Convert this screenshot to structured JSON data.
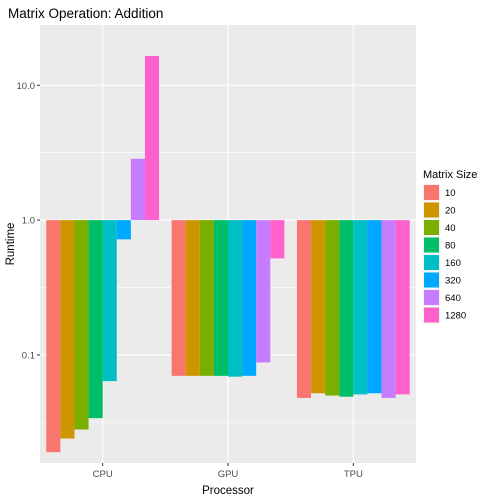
{
  "chart_data": {
    "type": "bar",
    "title": "Matrix Operation: Addition",
    "xlabel": "Processor",
    "ylabel": "Runtime",
    "y_scale": "log10",
    "ylim": [
      0.0158,
      28.0
    ],
    "y_ticks": [
      {
        "value": 0.1,
        "label": "0.1"
      },
      {
        "value": 1.0,
        "label": "1.0"
      },
      {
        "value": 10.0,
        "label": "10.0"
      }
    ],
    "bar_baseline": 1.0,
    "categories": [
      "CPU",
      "GPU",
      "TPU"
    ],
    "grid": true,
    "legend": {
      "title": "Matrix Size",
      "position": "right"
    },
    "series": [
      {
        "name": "10",
        "color": "#F8766D",
        "values": [
          0.019,
          0.07,
          0.048
        ]
      },
      {
        "name": "20",
        "color": "#CD9600",
        "values": [
          0.024,
          0.07,
          0.052
        ]
      },
      {
        "name": "40",
        "color": "#7CAE00",
        "values": [
          0.028,
          0.07,
          0.05
        ]
      },
      {
        "name": "80",
        "color": "#00BE67",
        "values": [
          0.034,
          0.07,
          0.049
        ]
      },
      {
        "name": "160",
        "color": "#00BFC4",
        "values": [
          0.064,
          0.069,
          0.051
        ]
      },
      {
        "name": "320",
        "color": "#00A9FF",
        "values": [
          0.72,
          0.07,
          0.052
        ]
      },
      {
        "name": "640",
        "color": "#C77CFF",
        "values": [
          2.85,
          0.088,
          0.048
        ]
      },
      {
        "name": "1280",
        "color": "#FF61CC",
        "values": [
          16.5,
          0.52,
          0.051
        ]
      }
    ]
  }
}
